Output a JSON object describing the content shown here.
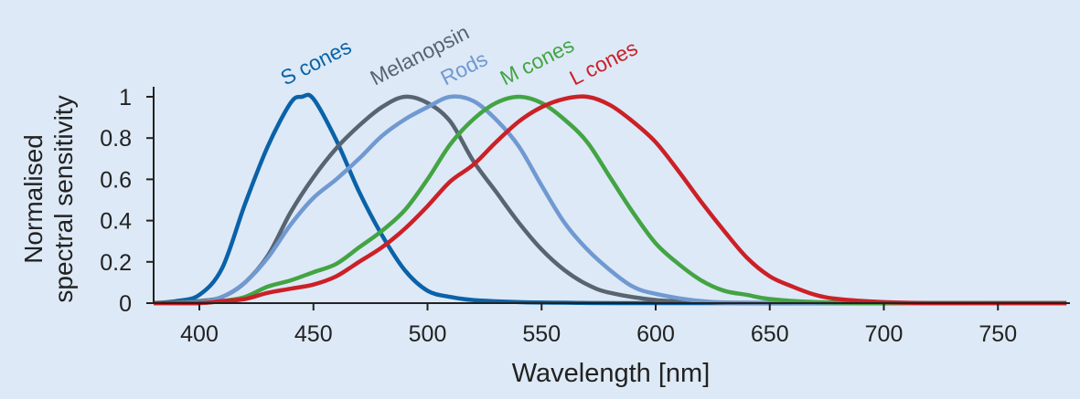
{
  "chart_data": {
    "type": "line",
    "xlabel": "Wavelength [nm]",
    "ylabel": [
      "Normalised",
      "spectral sensitivity"
    ],
    "xlim": [
      380,
      780
    ],
    "ylim": [
      0,
      1
    ],
    "xticks": [
      400,
      450,
      500,
      550,
      600,
      650,
      700,
      750
    ],
    "yticks": [
      0,
      0.2,
      0.4,
      0.6,
      0.8,
      1
    ],
    "ytick_labels": [
      "0",
      "0.2",
      "0.4",
      "0.6",
      "0.8",
      "1"
    ],
    "grid": false,
    "legend": "labels above curve peaks",
    "series": [
      {
        "name": "S cones",
        "color": "#0a62a8",
        "x": [
          380,
          390,
          400,
          410,
          420,
          430,
          440,
          445,
          450,
          460,
          470,
          480,
          490,
          500,
          510,
          520,
          540,
          560,
          600,
          780
        ],
        "y": [
          0,
          0.01,
          0.04,
          0.17,
          0.48,
          0.76,
          0.97,
          1.0,
          0.99,
          0.79,
          0.54,
          0.33,
          0.16,
          0.06,
          0.03,
          0.015,
          0.005,
          0.002,
          0,
          0
        ]
      },
      {
        "name": "Melanopsin",
        "color": "#586470",
        "x": [
          380,
          400,
          410,
          420,
          430,
          440,
          450,
          460,
          470,
          480,
          490,
          500,
          510,
          520,
          530,
          540,
          550,
          560,
          570,
          580,
          600,
          620,
          650,
          780
        ],
        "y": [
          0,
          0.01,
          0.03,
          0.1,
          0.23,
          0.44,
          0.61,
          0.75,
          0.86,
          0.95,
          1.0,
          0.97,
          0.88,
          0.69,
          0.54,
          0.39,
          0.26,
          0.16,
          0.09,
          0.05,
          0.015,
          0.005,
          0,
          0
        ]
      },
      {
        "name": "Rods",
        "color": "#7099d2",
        "x": [
          380,
          400,
          410,
          420,
          430,
          440,
          450,
          460,
          470,
          480,
          490,
          500,
          510,
          520,
          530,
          540,
          550,
          560,
          570,
          580,
          590,
          600,
          620,
          650,
          780
        ],
        "y": [
          0,
          0.005,
          0.03,
          0.1,
          0.22,
          0.38,
          0.51,
          0.6,
          0.7,
          0.81,
          0.89,
          0.95,
          1.0,
          0.98,
          0.89,
          0.76,
          0.57,
          0.39,
          0.26,
          0.16,
          0.08,
          0.045,
          0.01,
          0.002,
          0
        ]
      },
      {
        "name": "M cones",
        "color": "#43a443",
        "x": [
          380,
          400,
          410,
          420,
          430,
          440,
          450,
          460,
          470,
          480,
          490,
          500,
          510,
          520,
          530,
          540,
          550,
          560,
          570,
          580,
          590,
          600,
          610,
          620,
          630,
          640,
          650,
          670,
          700
        ],
        "y": [
          0,
          0,
          0.01,
          0.03,
          0.08,
          0.11,
          0.15,
          0.19,
          0.27,
          0.35,
          0.45,
          0.6,
          0.77,
          0.89,
          0.97,
          1.0,
          0.97,
          0.89,
          0.78,
          0.61,
          0.44,
          0.29,
          0.19,
          0.11,
          0.06,
          0.04,
          0.02,
          0.005,
          0
        ]
      },
      {
        "name": "L cones",
        "color": "#cc2027",
        "x": [
          380,
          400,
          410,
          420,
          430,
          440,
          450,
          460,
          470,
          480,
          490,
          500,
          510,
          520,
          530,
          540,
          550,
          560,
          570,
          580,
          590,
          600,
          610,
          620,
          630,
          640,
          650,
          660,
          670,
          680,
          700,
          720
        ],
        "y": [
          0,
          0,
          0.01,
          0.02,
          0.05,
          0.07,
          0.09,
          0.13,
          0.2,
          0.27,
          0.36,
          0.47,
          0.59,
          0.67,
          0.78,
          0.88,
          0.95,
          0.99,
          1.0,
          0.96,
          0.88,
          0.78,
          0.64,
          0.49,
          0.35,
          0.22,
          0.13,
          0.08,
          0.04,
          0.02,
          0.005,
          0
        ]
      }
    ]
  }
}
